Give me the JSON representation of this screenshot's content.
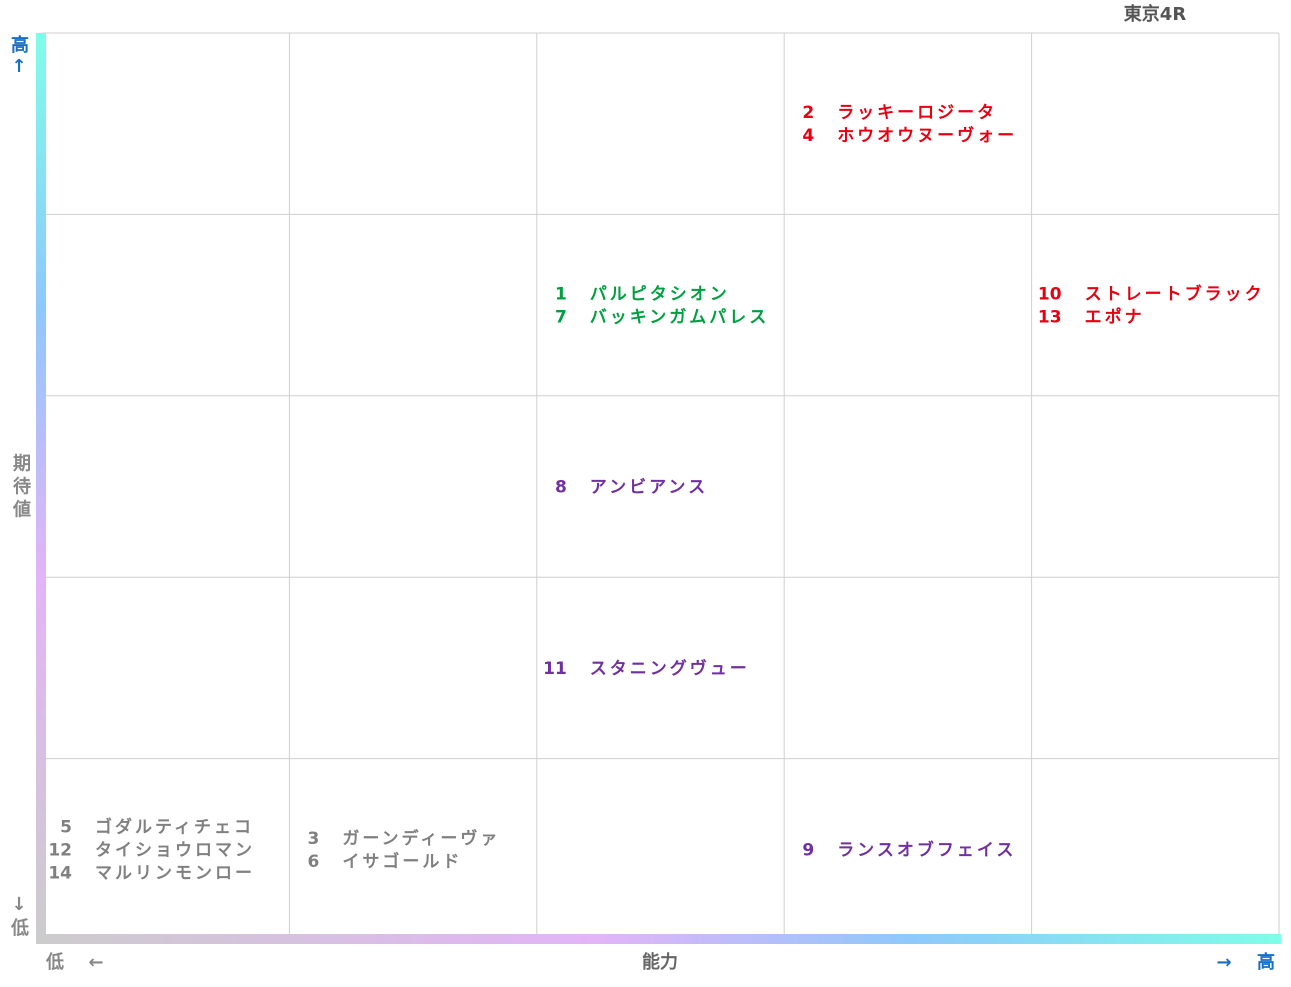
{
  "title": "東京4R",
  "y_axis": {
    "high": "高",
    "arrow_up": "↑",
    "label": "期待値",
    "arrow_down": "↓",
    "low": "低"
  },
  "x_axis": {
    "low": "低",
    "arrow_left": "←",
    "label": "能力",
    "arrow_right": "→",
    "high": "高"
  },
  "grid": {
    "rows": [
      [
        null,
        null,
        null,
        {
          "color": "#e60012",
          "entries": [
            {
              "number": 2,
              "name": "ラッキーロジータ"
            },
            {
              "number": 4,
              "name": "ホウオウヌーヴォー"
            }
          ]
        },
        null
      ],
      [
        null,
        null,
        {
          "color": "#00a040",
          "entries": [
            {
              "number": 1,
              "name": "パルピタシオン"
            },
            {
              "number": 7,
              "name": "バッキンガムパレス"
            }
          ]
        },
        null,
        {
          "color": "#e60012",
          "entries": [
            {
              "number": 10,
              "name": "ストレートブラック"
            },
            {
              "number": 13,
              "name": "エポナ"
            }
          ]
        }
      ],
      [
        null,
        null,
        {
          "color": "#7030a0",
          "entries": [
            {
              "number": 8,
              "name": "アンビアンス"
            }
          ]
        },
        null,
        null
      ],
      [
        null,
        null,
        {
          "color": "#7030a0",
          "entries": [
            {
              "number": 11,
              "name": "スタニングヴュー"
            }
          ]
        },
        null,
        null
      ],
      [
        {
          "color": "#808080",
          "entries": [
            {
              "number": 5,
              "name": "ゴダルティチェコ"
            },
            {
              "number": 12,
              "name": "タイショウロマン"
            },
            {
              "number": 14,
              "name": "マルリンモンロー"
            }
          ]
        },
        {
          "color": "#808080",
          "entries": [
            {
              "number": 3,
              "name": "ガーンディーヴァ"
            },
            {
              "number": 6,
              "name": "イサゴールド"
            }
          ]
        },
        null,
        {
          "color": "#7030a0",
          "entries": [
            {
              "number": 9,
              "name": "ランスオブフェイス"
            }
          ]
        },
        null
      ]
    ]
  }
}
